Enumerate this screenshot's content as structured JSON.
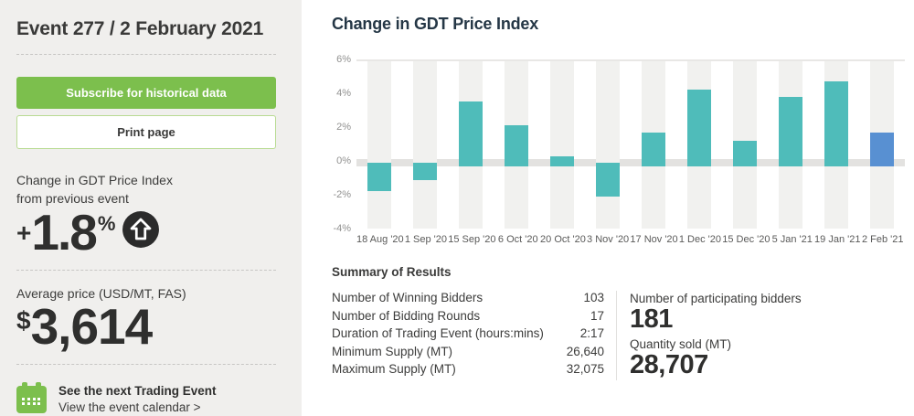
{
  "sidebar": {
    "title": "Event 277 / 2 February 2021",
    "subscribe_label": "Subscribe for historical data",
    "print_label": "Print page",
    "change_label_line1": "Change in GDT Price Index",
    "change_label_line2": "from previous event",
    "change_sign": "+",
    "change_value": "1.8",
    "change_unit": "%",
    "avg_price_label": "Average price (USD/MT, FAS)",
    "avg_price_currency": "$",
    "avg_price_value": "3,614",
    "next_event_title": "See the next Trading Event",
    "next_event_link": "View the event calendar >"
  },
  "main": {
    "chart_title": "Change in GDT Price Index",
    "summary": {
      "heading": "Summary of Results",
      "rows": [
        {
          "label": "Number of Winning Bidders",
          "value": "103"
        },
        {
          "label": "Number of Bidding Rounds",
          "value": "17"
        },
        {
          "label": "Duration of Trading Event (hours:mins)",
          "value": "2:17"
        },
        {
          "label": "Minimum Supply (MT)",
          "value": "26,640"
        },
        {
          "label": "Maximum Supply (MT)",
          "value": "32,075"
        }
      ],
      "stats": [
        {
          "label": "Number of participating bidders",
          "value": "181"
        },
        {
          "label": "Quantity sold (MT)",
          "value": "28,707"
        }
      ]
    }
  },
  "chart_data": {
    "type": "bar",
    "title": "Change in GDT Price Index",
    "categories": [
      "18 Aug '20",
      "1 Sep '20",
      "15 Sep '20",
      "6 Oct '20",
      "20 Oct '20",
      "3 Nov '20",
      "17 Nov '20",
      "1 Dec '20",
      "15 Dec '20",
      "5 Jan '21",
      "19 Jan '21",
      "2 Feb '21"
    ],
    "values": [
      -1.7,
      -1.0,
      3.6,
      2.2,
      0.4,
      -2.0,
      1.8,
      4.3,
      1.3,
      3.9,
      4.8,
      1.8
    ],
    "xlabel": "",
    "ylabel": "",
    "ylim": [
      -4,
      6
    ],
    "yticks": [
      "6%",
      "4%",
      "2%",
      "0%",
      "-2%",
      "-4%"
    ],
    "grid": "zero-band-and-column-stripes",
    "legend": "none",
    "bar_color": "#4fbcba",
    "highlight_color": "#5890d2",
    "highlight_index": 11
  },
  "colors": {
    "accent_green": "#7cbf4d",
    "sidebar_bg": "#f0efed",
    "teal_bar": "#4fbcba",
    "blue_bar": "#5890d2",
    "heading_navy": "#253746",
    "text_dark": "#2f2f2e"
  }
}
